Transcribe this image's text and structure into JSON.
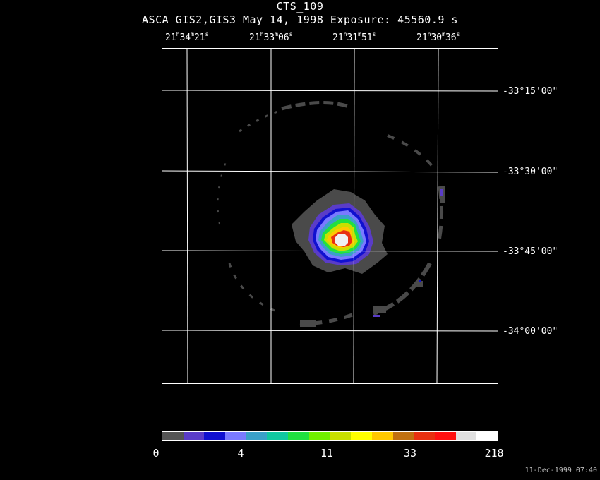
{
  "title": {
    "object": "CTS_109",
    "subtitle": "ASCA GIS2,GIS3 May 14, 1998 Exposure: 45560.9 s"
  },
  "ra_labels": [
    {
      "h": "21",
      "m": "34",
      "s": "21"
    },
    {
      "h": "21",
      "m": "33",
      "s": "06"
    },
    {
      "h": "21",
      "m": "31",
      "s": "51"
    },
    {
      "h": "21",
      "m": "30",
      "s": "36"
    }
  ],
  "dec_labels": [
    "-33°15'00\"",
    "-33°30'00\"",
    "-33°45'00\"",
    "-34°00'00\""
  ],
  "colorbar": {
    "labels": [
      "0",
      "4",
      "11",
      "33",
      "218"
    ],
    "colors": [
      "#555555",
      "#5a3cc8",
      "#1010d0",
      "#7a7aff",
      "#3aa0c8",
      "#10c8a0",
      "#20e040",
      "#70f000",
      "#c8e000",
      "#ffff00",
      "#ffc800",
      "#c07010",
      "#e83010",
      "#ff1010",
      "#e0e0e0",
      "#ffffff"
    ]
  },
  "timestamp": "11-Dec-1999 07:40"
}
